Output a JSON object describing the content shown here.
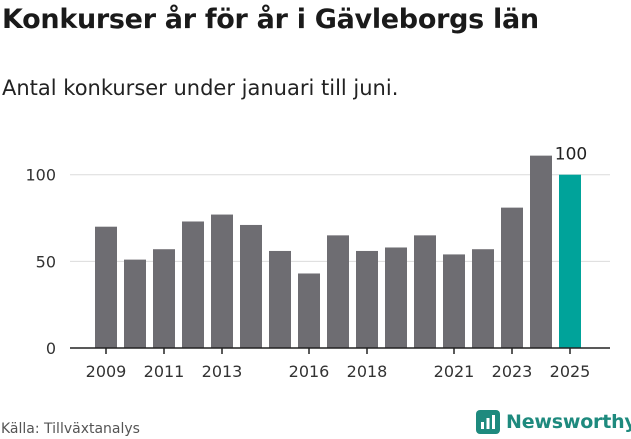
{
  "title": "Konkurser år för år i Gävleborgs län",
  "subtitle": "Antal konkurser under januari till juni.",
  "source": "Källa: Tillväxtanalys",
  "brand": {
    "name": "Newsworthy",
    "icon": "newsworthy-logo-icon"
  },
  "colors": {
    "bar": "#6e6d72",
    "highlight": "#00a39a",
    "grid": "#dcdcdc",
    "axis": "#222222",
    "brand": "#1e8a7e"
  },
  "chart_data": {
    "type": "bar",
    "categories": [
      "2009",
      "2010",
      "2011",
      "2012",
      "2013",
      "2014",
      "2015",
      "2016",
      "2017",
      "2018",
      "2019",
      "2020",
      "2021",
      "2022",
      "2023",
      "2024",
      "2025"
    ],
    "values": [
      70,
      51,
      57,
      73,
      77,
      71,
      56,
      43,
      65,
      56,
      58,
      65,
      54,
      57,
      81,
      111,
      100
    ],
    "tick_labels": [
      "2009",
      "2011",
      "2013",
      "2016",
      "2018",
      "2021",
      "2023",
      "2025"
    ],
    "y_ticks": [
      0,
      50,
      100
    ],
    "ylim": [
      0,
      125
    ],
    "highlight_category": "2025",
    "data_labels": [
      {
        "category": "2025",
        "text": "100"
      }
    ],
    "grid": true,
    "legend": "none",
    "xlabel": "",
    "ylabel": ""
  }
}
